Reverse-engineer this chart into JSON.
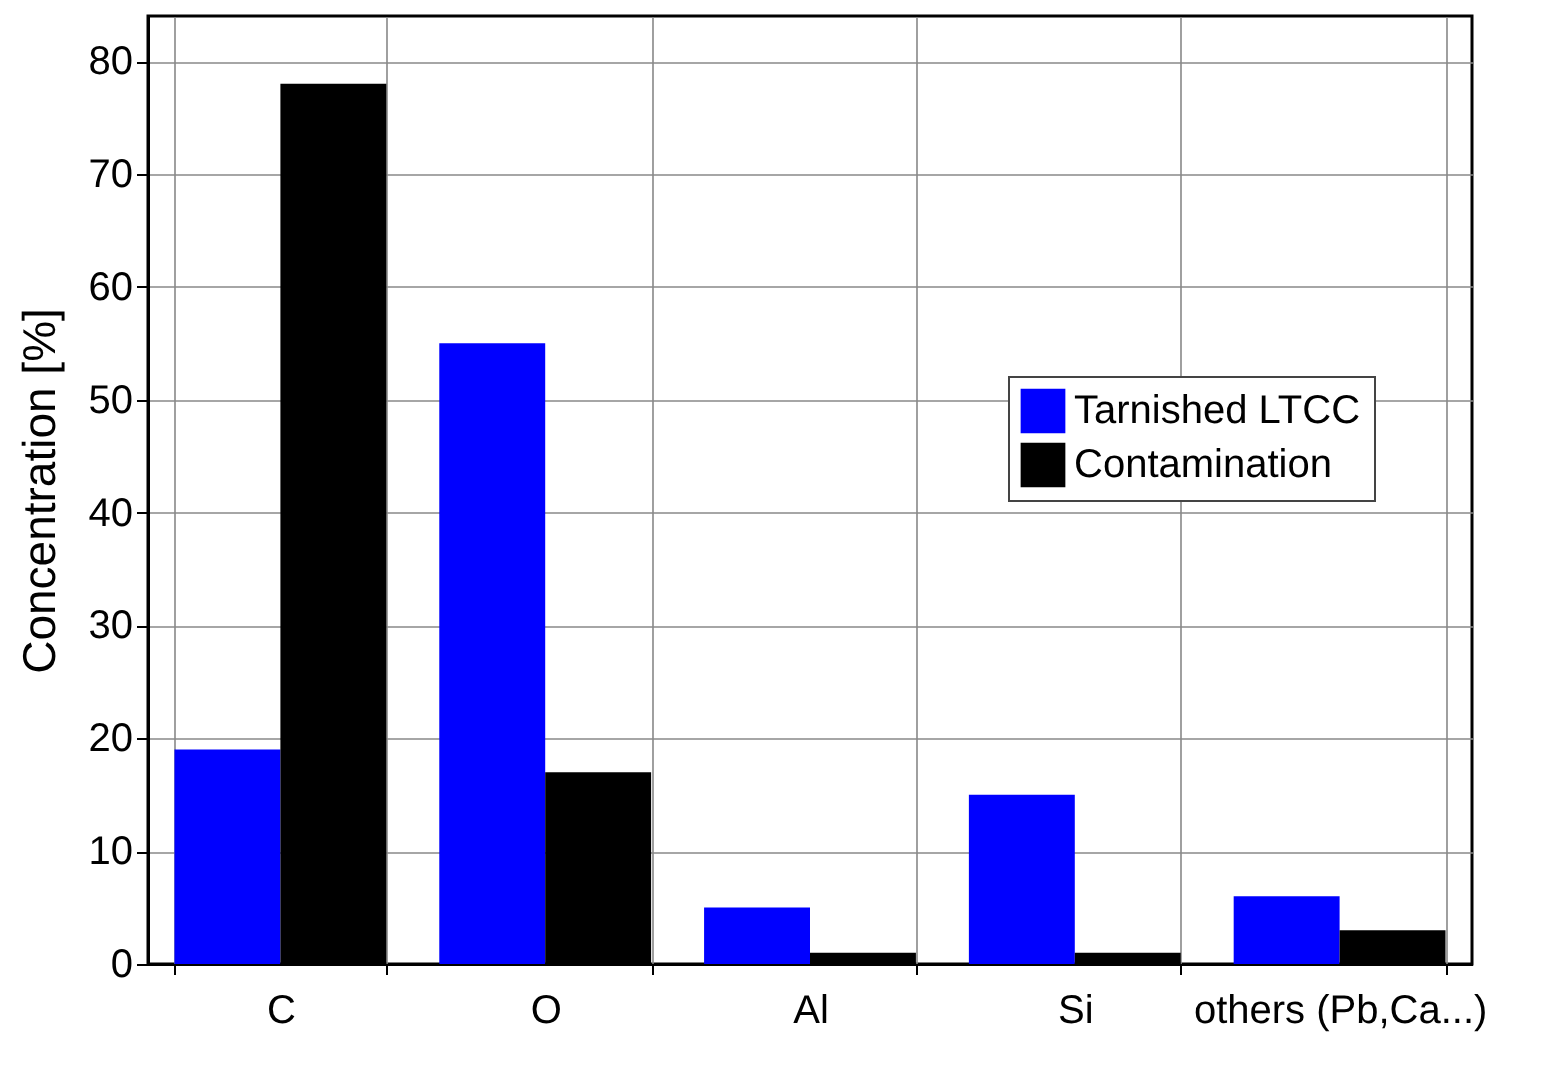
{
  "chart_data": {
    "type": "bar",
    "ylabel": "Concentration [%]",
    "categories": [
      "C",
      "O",
      "Al",
      "Si",
      "others (Pb,Ca...)"
    ],
    "series": [
      {
        "name": "Tarnished LTCC",
        "color": "#0000ff",
        "values": [
          19,
          55,
          5,
          15,
          6
        ]
      },
      {
        "name": "Contamination",
        "color": "#000000",
        "values": [
          78,
          17,
          1,
          1,
          3
        ]
      }
    ],
    "ylim": [
      0,
      84
    ],
    "yticks": [
      0,
      10,
      20,
      30,
      40,
      50,
      60,
      70,
      80
    ],
    "grid": true,
    "legend": "right"
  }
}
